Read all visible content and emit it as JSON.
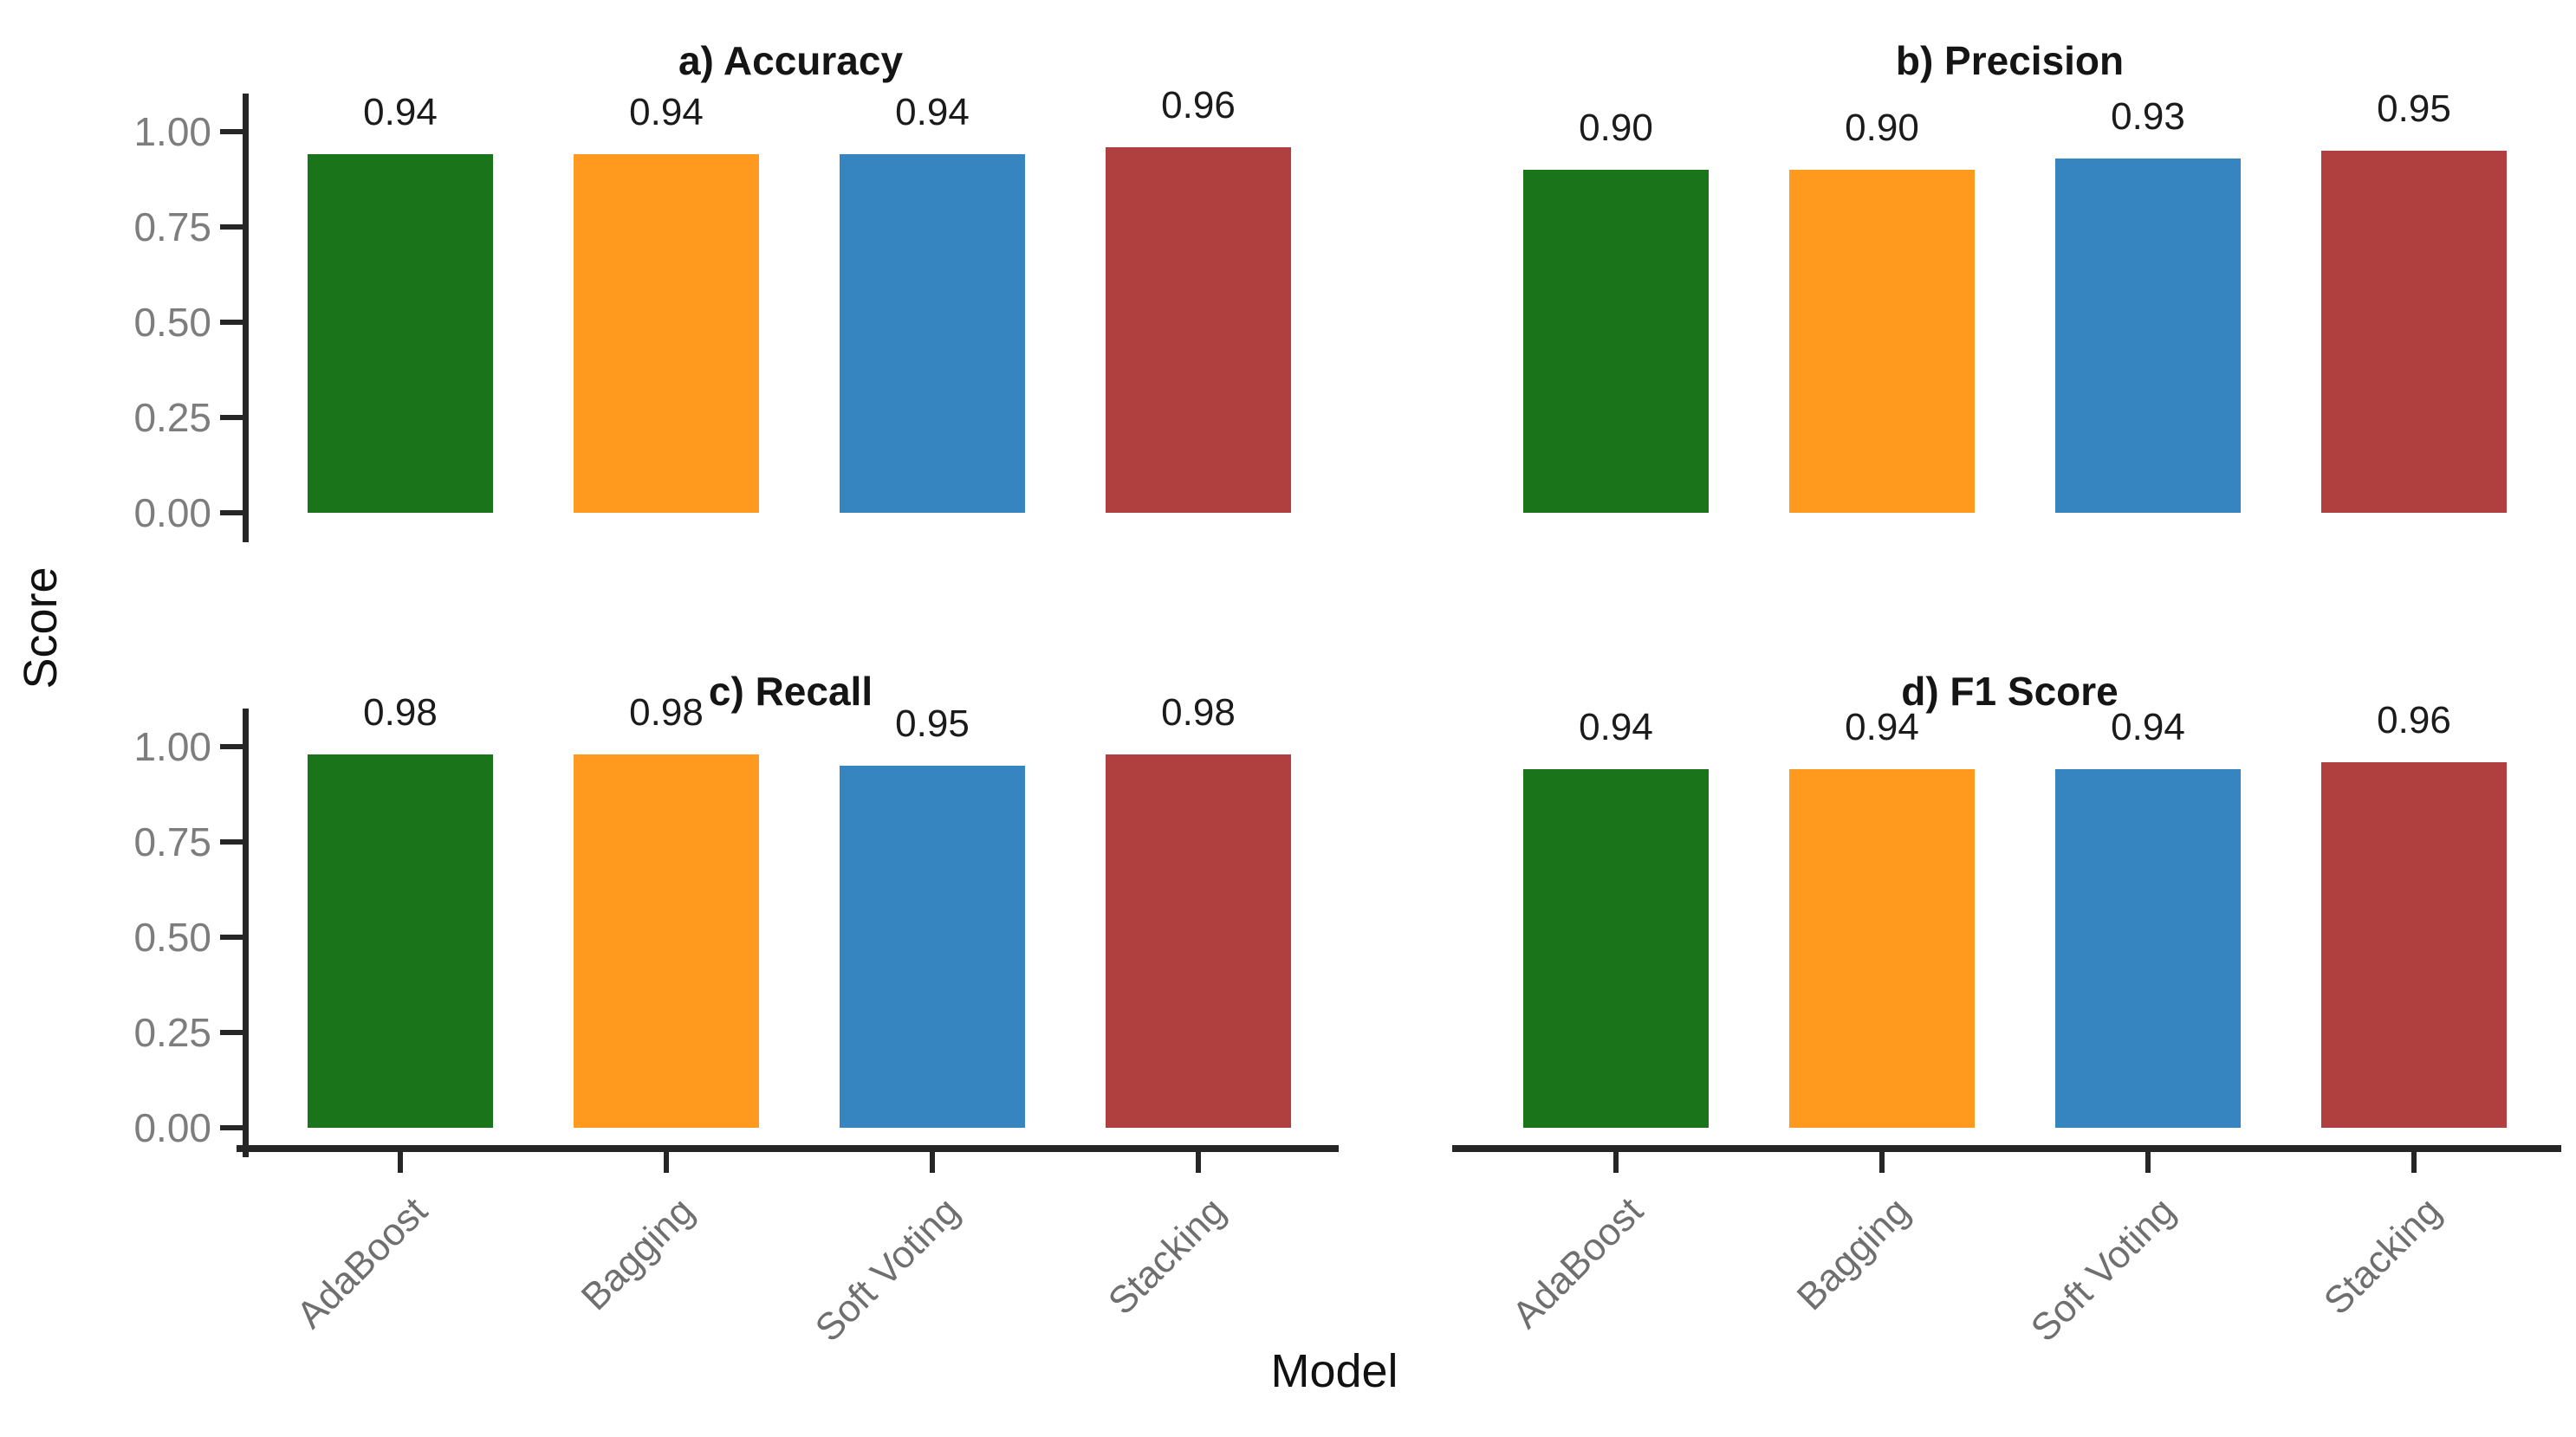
{
  "figure": {
    "ylabel": "Score",
    "xlabel": "Model"
  },
  "categories": [
    "AdaBoost",
    "Bagging",
    "Soft Voting",
    "Stacking"
  ],
  "bar_colors": [
    "#1a741a",
    "#ff9a1e",
    "#3685c1",
    "#b03f3f"
  ],
  "y_tick_labels": [
    "1.00",
    "0.75",
    "0.50",
    "0.25",
    "0.00"
  ],
  "chart_data": [
    {
      "type": "bar",
      "title": "a) Accuracy",
      "categories": [
        "AdaBoost",
        "Bagging",
        "Soft Voting",
        "Stacking"
      ],
      "values": [
        0.94,
        0.94,
        0.94,
        0.96
      ],
      "xlabel": "Model",
      "ylabel": "Score",
      "ylim": [
        0,
        1.1
      ],
      "grid": false,
      "legend": false
    },
    {
      "type": "bar",
      "title": "b) Precision",
      "categories": [
        "AdaBoost",
        "Bagging",
        "Soft Voting",
        "Stacking"
      ],
      "values": [
        0.9,
        0.9,
        0.93,
        0.95
      ],
      "xlabel": "Model",
      "ylabel": "Score",
      "ylim": [
        0,
        1.1
      ],
      "grid": false,
      "legend": false
    },
    {
      "type": "bar",
      "title": "c) Recall",
      "categories": [
        "AdaBoost",
        "Bagging",
        "Soft Voting",
        "Stacking"
      ],
      "values": [
        0.98,
        0.98,
        0.95,
        0.98
      ],
      "xlabel": "Model",
      "ylabel": "Score",
      "ylim": [
        0,
        1.1
      ],
      "grid": false,
      "legend": false
    },
    {
      "type": "bar",
      "title": "d) F1 Score",
      "categories": [
        "AdaBoost",
        "Bagging",
        "Soft Voting",
        "Stacking"
      ],
      "values": [
        0.94,
        0.94,
        0.94,
        0.96
      ],
      "xlabel": "Model",
      "ylabel": "Score",
      "ylim": [
        0,
        1.1
      ],
      "grid": false,
      "legend": false
    }
  ]
}
